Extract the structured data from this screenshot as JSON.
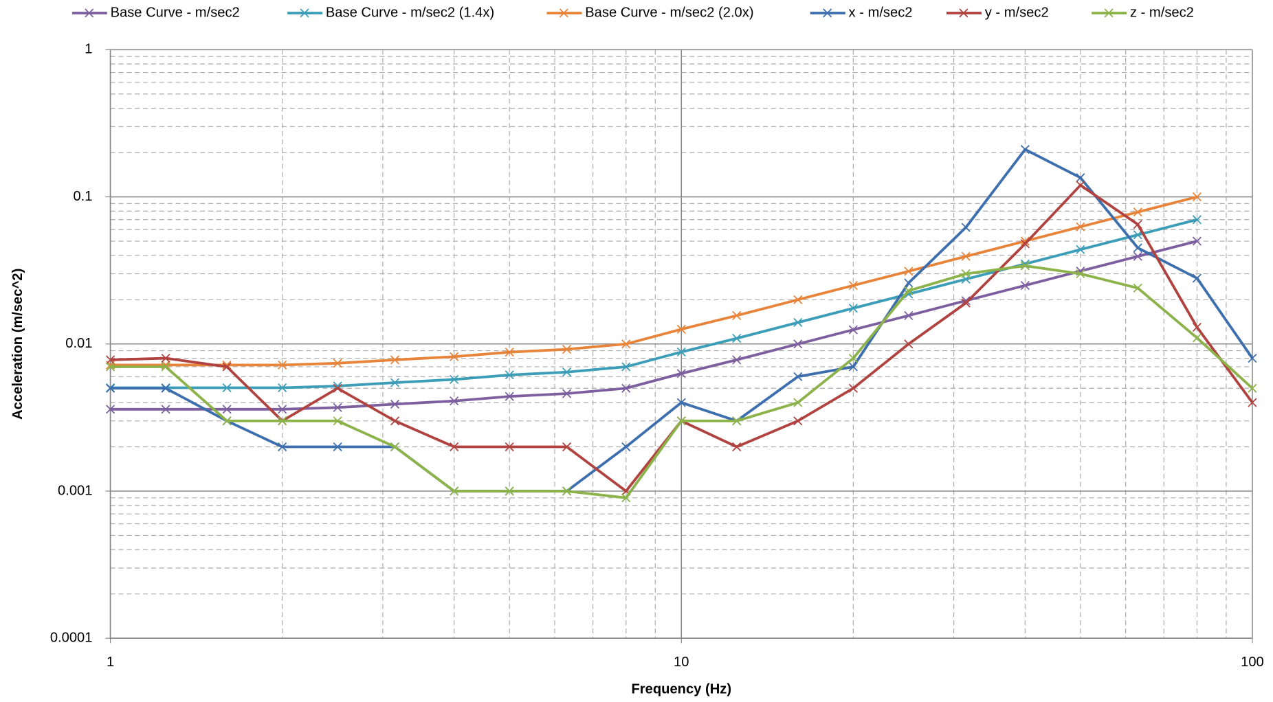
{
  "chart_data": {
    "type": "line",
    "x_label": "Frequency (Hz)",
    "y_label": "Acceleration  (m/sec^2)",
    "x_log": true,
    "y_log": true,
    "grid": true,
    "minor_grid": true,
    "legend": "top",
    "marker": "x",
    "xlim": [
      1,
      100
    ],
    "xticks": [
      1,
      10,
      100
    ],
    "ylim": [
      0.0001,
      1
    ],
    "yticks": [
      0.0001,
      0.001,
      0.01,
      0.1,
      1
    ],
    "x": [
      1,
      1.25,
      1.6,
      2,
      2.5,
      3.15,
      4,
      5,
      6.3,
      8,
      10,
      12.5,
      16,
      20,
      25,
      31.5,
      40,
      50,
      63,
      80,
      100
    ],
    "series": [
      {
        "name": "Base Curve - m/sec2",
        "color": "#7d5fa0",
        "values": [
          0.0036,
          0.0036,
          0.0036,
          0.0036,
          0.0037,
          0.0039,
          0.0041,
          0.0044,
          0.0046,
          0.005,
          0.0063,
          0.0078,
          0.01,
          0.0125,
          0.0156,
          0.0197,
          0.025,
          0.0313,
          0.0394,
          0.05,
          null
        ]
      },
      {
        "name": "Base Curve - m/sec2 (1.4x)",
        "color": "#3c9db8",
        "values": [
          0.00504,
          0.00504,
          0.00504,
          0.00504,
          0.00518,
          0.00546,
          0.00574,
          0.00616,
          0.00644,
          0.007,
          0.00882,
          0.01092,
          0.014,
          0.0175,
          0.02184,
          0.02758,
          0.035,
          0.04382,
          0.05516,
          0.07,
          null
        ]
      },
      {
        "name": "Base Curve - m/sec2 (2.0x)",
        "color": "#e8843a",
        "values": [
          0.0072,
          0.0072,
          0.0072,
          0.0072,
          0.0074,
          0.0078,
          0.0082,
          0.0088,
          0.0092,
          0.01,
          0.0126,
          0.0156,
          0.02,
          0.025,
          0.0312,
          0.0394,
          0.05,
          0.0626,
          0.0788,
          0.1,
          null
        ]
      },
      {
        "name": "x - m/sec2",
        "color": "#3d6fae",
        "values": [
          0.005,
          0.005,
          0.003,
          0.002,
          0.002,
          0.002,
          0.001,
          0.001,
          0.001,
          0.002,
          0.004,
          0.003,
          0.006,
          0.007,
          0.026,
          0.062,
          0.21,
          0.135,
          0.045,
          0.028,
          0.008
        ]
      },
      {
        "name": "y - m/sec2",
        "color": "#b04340",
        "values": [
          0.0078,
          0.008,
          0.007,
          0.003,
          0.005,
          0.003,
          0.002,
          0.002,
          0.002,
          0.001,
          0.003,
          0.002,
          0.003,
          0.005,
          0.01,
          0.019,
          0.048,
          0.12,
          0.065,
          0.013,
          0.004
        ]
      },
      {
        "name": "z - m/sec2",
        "color": "#8cb24a",
        "values": [
          0.007,
          0.007,
          0.003,
          0.003,
          0.003,
          0.002,
          0.001,
          0.001,
          0.001,
          0.0009,
          0.003,
          0.003,
          0.004,
          0.008,
          0.023,
          0.03,
          0.034,
          0.03,
          0.024,
          0.011,
          0.005
        ]
      }
    ]
  }
}
